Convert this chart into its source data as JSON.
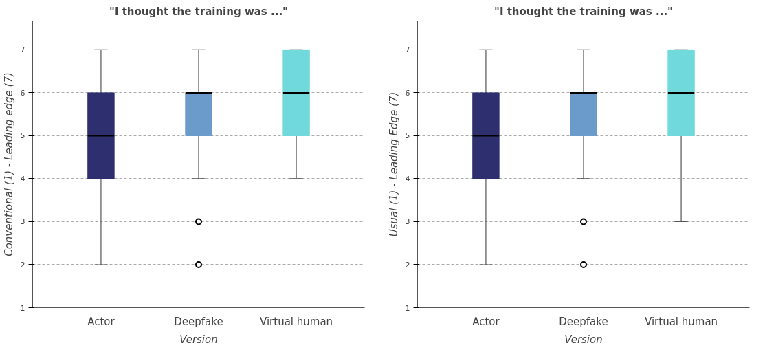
{
  "chart_data": [
    {
      "type": "box",
      "title": "\"I thought the training was ...\"",
      "xlabel": "Version",
      "ylabel": "Conventional (1) - Leading edge (7)",
      "categories": [
        "Actor",
        "Deepfake",
        "Virtual human"
      ],
      "colors": [
        "#2e2f6e",
        "#6a9bcb",
        "#6fd9dc"
      ],
      "ylim": [
        1,
        7.67
      ],
      "yticks": [
        1,
        2,
        3,
        4,
        5,
        6,
        7
      ],
      "grid": "y",
      "boxes": [
        {
          "low": 2,
          "q1": 4,
          "median": 5,
          "q3": 6,
          "high": 7
        },
        {
          "low": 4,
          "q1": 5,
          "median": 6,
          "q3": 6,
          "high": 7,
          "outliers": [
            3,
            2
          ]
        },
        {
          "low": 4,
          "q1": 5,
          "median": 6,
          "q3": 7,
          "high": 7
        }
      ]
    },
    {
      "type": "box",
      "title": "\"I thought the training was ...\"",
      "xlabel": "Version",
      "ylabel": "Usual (1) - Leading Edge (7)",
      "categories": [
        "Actor",
        "Deepfake",
        "Virtual human"
      ],
      "colors": [
        "#2e2f6e",
        "#6a9bcb",
        "#6fd9dc"
      ],
      "ylim": [
        1,
        7.67
      ],
      "yticks": [
        1,
        2,
        3,
        4,
        5,
        6,
        7
      ],
      "grid": "y",
      "boxes": [
        {
          "low": 2,
          "q1": 4,
          "median": 5,
          "q3": 6,
          "high": 7
        },
        {
          "low": 4,
          "q1": 5,
          "median": 6,
          "q3": 6,
          "high": 7,
          "outliers": [
            3,
            2
          ]
        },
        {
          "low": 3,
          "q1": 5,
          "median": 6,
          "q3": 7,
          "high": 7
        }
      ]
    }
  ]
}
